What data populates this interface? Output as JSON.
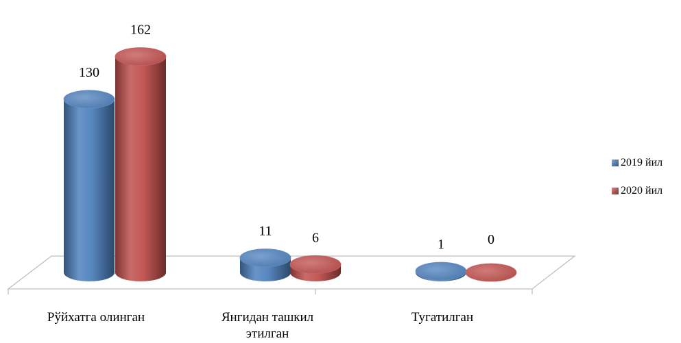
{
  "chart_data": {
    "type": "bar",
    "categories": [
      "Рўйхатга олинган",
      "Янгидан ташкил этилган",
      "Тугатилган"
    ],
    "series": [
      {
        "name": "2019 йил",
        "values": [
          130,
          11,
          1
        ],
        "color": "#4f81bd"
      },
      {
        "name": "2020 йил",
        "values": [
          162,
          6,
          0
        ],
        "color": "#c0504d"
      }
    ],
    "data_labels": [
      [
        "130",
        "11",
        "1"
      ],
      [
        "162",
        "6",
        "0"
      ]
    ],
    "title": "",
    "xlabel": "",
    "ylabel": "",
    "ylim": [
      0,
      170
    ],
    "grid": false,
    "legend_position": "right",
    "style": "3d-cylinder"
  }
}
